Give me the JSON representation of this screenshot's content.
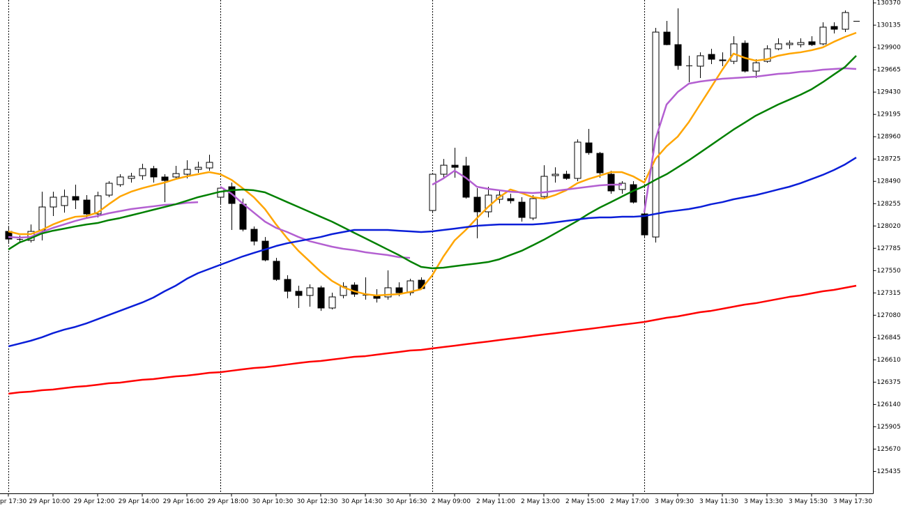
{
  "chart_data": {
    "type": "candlestick",
    "categories": [
      "pr 17:30",
      null,
      null,
      null,
      "29 Apr 10:00",
      null,
      null,
      null,
      "29 Apr 12:00",
      null,
      null,
      null,
      "29 Apr 14:00",
      null,
      null,
      null,
      "29 Apr 16:00",
      null,
      null,
      null,
      "29 Apr 18:00",
      null,
      null,
      null,
      "30 Apr 10:30",
      null,
      null,
      null,
      "30 Apr 12:30",
      null,
      null,
      null,
      "30 Apr 14:30",
      null,
      null,
      null,
      "30 Apr 16:30",
      null,
      null,
      null,
      "2 May 09:00",
      null,
      null,
      null,
      "2 May 11:00",
      null,
      null,
      null,
      "2 May 13:00",
      null,
      null,
      null,
      "2 May 15:00",
      null,
      null,
      null,
      "2 May 17:00",
      null,
      null,
      null,
      "3 May 09:30",
      null,
      null,
      null,
      "3 May 11:30",
      null,
      null,
      null,
      "3 May 13:30",
      null,
      null,
      null,
      "3 May 15:30",
      null,
      null,
      null,
      "3 May 17:30"
    ],
    "open": [
      127963,
      127882,
      127868,
      127978,
      128220,
      128235,
      128330,
      128293,
      128147,
      128345,
      128455,
      128521,
      128550,
      128624,
      128536,
      128536,
      128565,
      128616,
      128631,
      128323,
      128433,
      128249,
      127985,
      127860,
      127648,
      127457,
      127332,
      127288,
      127369,
      127156,
      127288,
      127398,
      127295,
      127288,
      127273,
      127369,
      127317,
      127449,
      128183,
      128565,
      128660,
      128653,
      128323,
      128169,
      128301,
      128308,
      128271,
      128103,
      128330,
      128550,
      128565,
      128521,
      128895,
      128785,
      128565,
      128404,
      128455,
      128147,
      127904,
      130062,
      129930,
      129710,
      129703,
      129827,
      129769,
      129754,
      129945,
      129651,
      129754,
      129886,
      129930,
      129930,
      129960,
      129938,
      130121,
      130092,
      130180
    ],
    "high": [
      128007,
      127919,
      128036,
      128381,
      128381,
      128404,
      128455,
      128345,
      128381,
      128492,
      128565,
      128580,
      128675,
      128653,
      128565,
      128653,
      128712,
      128697,
      128771,
      128433,
      128477,
      128308,
      128015,
      127904,
      127684,
      127501,
      127391,
      127405,
      127391,
      127317,
      127427,
      127427,
      127479,
      127354,
      127552,
      127427,
      127464,
      127479,
      128580,
      128726,
      128844,
      128748,
      128418,
      128433,
      128404,
      128360,
      128323,
      128345,
      128660,
      128638,
      128602,
      128932,
      129042,
      128800,
      128602,
      128492,
      128492,
      128345,
      130106,
      130180,
      130312,
      129813,
      129849,
      129886,
      129849,
      130018,
      129974,
      129776,
      129923,
      129996,
      129974,
      129996,
      130018,
      130165,
      130165,
      130290,
      130180
    ],
    "low": [
      127846,
      127846,
      127846,
      127868,
      128125,
      128161,
      128198,
      128110,
      128110,
      128323,
      128433,
      128477,
      128506,
      128477,
      128271,
      128506,
      128521,
      128580,
      128602,
      128257,
      127978,
      127963,
      127816,
      127648,
      127442,
      127258,
      127156,
      127170,
      127126,
      127141,
      127258,
      127273,
      127244,
      127214,
      127244,
      127280,
      127288,
      127347,
      128161,
      128521,
      128528,
      128308,
      127890,
      128110,
      128257,
      128257,
      128066,
      128081,
      128308,
      128477,
      128506,
      128492,
      128771,
      128528,
      128360,
      128360,
      128257,
      127904,
      127846,
      129923,
      129666,
      129534,
      129578,
      129725,
      129703,
      129725,
      129637,
      129578,
      129739,
      129871,
      129886,
      129901,
      129916,
      129923,
      130048,
      130062,
      130180
    ],
    "close": [
      127882,
      127875,
      127963,
      128220,
      128323,
      128330,
      128293,
      128147,
      128338,
      128470,
      128536,
      128543,
      128624,
      128536,
      128499,
      128572,
      128616,
      128638,
      128690,
      128418,
      128257,
      127985,
      127860,
      127662,
      127457,
      127332,
      127288,
      127369,
      127156,
      127273,
      127383,
      127302,
      127288,
      127258,
      127369,
      127317,
      127442,
      127361,
      128565,
      128660,
      128638,
      128323,
      128169,
      128345,
      128345,
      128286,
      128110,
      128308,
      128543,
      128565,
      128521,
      128903,
      128792,
      128580,
      128389,
      128470,
      128271,
      127926,
      130062,
      129930,
      129710,
      129703,
      129813,
      129776,
      129761,
      129938,
      129651,
      129739,
      129886,
      129938,
      129945,
      129952,
      129930,
      130114,
      130092,
      130268,
      130180
    ],
    "lines": [
      {
        "color": "#ffa500",
        "values": [
          127963,
          127934,
          127934,
          127978,
          128036,
          128081,
          128117,
          128125,
          128161,
          128249,
          128330,
          128381,
          128418,
          128448,
          128477,
          128514,
          128543,
          128565,
          128587,
          128565,
          128506,
          128418,
          128323,
          128198,
          128036,
          127890,
          127758,
          127648,
          127537,
          127442,
          127376,
          127332,
          127302,
          127288,
          127295,
          127302,
          127325,
          127354,
          127501,
          127699,
          127868,
          127978,
          128103,
          128220,
          128323,
          128404,
          128367,
          128323,
          128308,
          128345,
          128396,
          128470,
          128514,
          128550,
          128587,
          128587,
          128543,
          128477,
          128726,
          128859,
          128961,
          129115,
          129299,
          129482,
          129666,
          129835,
          129791,
          129761,
          129776,
          129813,
          129835,
          129849,
          129871,
          129901,
          129960,
          130011,
          130055
        ]
      },
      {
        "color": "#b35fd1",
        "values": [
          127904,
          127897,
          127904,
          127956,
          128000,
          128036,
          128073,
          128103,
          128125,
          128154,
          128176,
          128198,
          128213,
          128227,
          128242,
          128249,
          128264,
          128271,
          null,
          128433,
          128360,
          128257,
          128161,
          128066,
          128000,
          127956,
          127904,
          127860,
          127831,
          127802,
          127780,
          127765,
          127743,
          127728,
          127714,
          127692,
          127684,
          null,
          128455,
          128521,
          128602,
          128528,
          128433,
          128411,
          128396,
          128381,
          128374,
          128367,
          128374,
          128389,
          128404,
          128418,
          128433,
          128448,
          128455,
          128455,
          null,
          128161,
          128932,
          129299,
          129431,
          129519,
          129541,
          129556,
          129571,
          129578,
          129585,
          129593,
          129607,
          129622,
          129629,
          129644,
          129651,
          129666,
          129673,
          129681,
          129673
        ]
      },
      {
        "color": "#008000",
        "values": [
          127772,
          127846,
          127890,
          127941,
          127970,
          127992,
          128015,
          128036,
          128051,
          128081,
          128103,
          128132,
          128161,
          128191,
          128220,
          128249,
          128286,
          128323,
          128352,
          128381,
          128396,
          128404,
          128396,
          128374,
          128323,
          128271,
          128220,
          128169,
          128117,
          128066,
          128007,
          127948,
          127890,
          127831,
          127772,
          127714,
          127648,
          127589,
          127574,
          127581,
          127596,
          127611,
          127625,
          127640,
          127669,
          127714,
          127758,
          127816,
          127875,
          127941,
          128007,
          128073,
          128147,
          128213,
          128271,
          128330,
          128389,
          128440,
          128506,
          128565,
          128638,
          128712,
          128792,
          128873,
          128954,
          129035,
          129108,
          129182,
          129240,
          129299,
          129350,
          129402,
          129460,
          129534,
          129615,
          129695,
          129813
        ]
      },
      {
        "color": "#0a1ed8",
        "values": [
          126752,
          126781,
          126811,
          126847,
          126891,
          126928,
          126957,
          126994,
          127038,
          127082,
          127126,
          127170,
          127214,
          127266,
          127332,
          127391,
          127464,
          127523,
          127567,
          127611,
          127655,
          127699,
          127736,
          127772,
          127809,
          127838,
          127860,
          127882,
          127904,
          127934,
          127956,
          127978,
          127978,
          127978,
          127978,
          127970,
          127963,
          127956,
          127963,
          127978,
          127992,
          128007,
          128022,
          128029,
          128036,
          128036,
          128036,
          128036,
          128044,
          128058,
          128073,
          128088,
          128103,
          128110,
          128110,
          128117,
          128117,
          128125,
          128147,
          128169,
          128183,
          128198,
          128220,
          128249,
          128271,
          128301,
          128323,
          128345,
          128374,
          128404,
          128433,
          128470,
          128514,
          128558,
          128609,
          128668,
          128741
        ]
      },
      {
        "color": "#ff0000",
        "values": [
          126253,
          126268,
          126275,
          126290,
          126297,
          126312,
          126326,
          126334,
          126348,
          126363,
          126370,
          126385,
          126400,
          126407,
          126422,
          126436,
          126444,
          126458,
          126473,
          126480,
          126495,
          126510,
          126524,
          126532,
          126546,
          126561,
          126576,
          126590,
          126598,
          126613,
          126627,
          126642,
          126649,
          126664,
          126679,
          126693,
          126708,
          126715,
          126730,
          126745,
          126759,
          126774,
          126789,
          126803,
          126818,
          126833,
          126847,
          126862,
          126877,
          126891,
          126906,
          126921,
          126935,
          126950,
          126965,
          126980,
          126994,
          127009,
          127031,
          127053,
          127068,
          127090,
          127112,
          127126,
          127148,
          127170,
          127192,
          127207,
          127229,
          127251,
          127273,
          127288,
          127310,
          127332,
          127347,
          127369,
          127391
        ]
      }
    ],
    "ylim": [
      125200,
      130400
    ],
    "yticks": [
      130370,
      130135,
      129900,
      129665,
      129430,
      129195,
      128960,
      128725,
      128490,
      128255,
      128020,
      127785,
      127550,
      127315,
      127080,
      126845,
      126610,
      126375,
      126140,
      125905,
      125670,
      125435
    ],
    "grid": false
  }
}
